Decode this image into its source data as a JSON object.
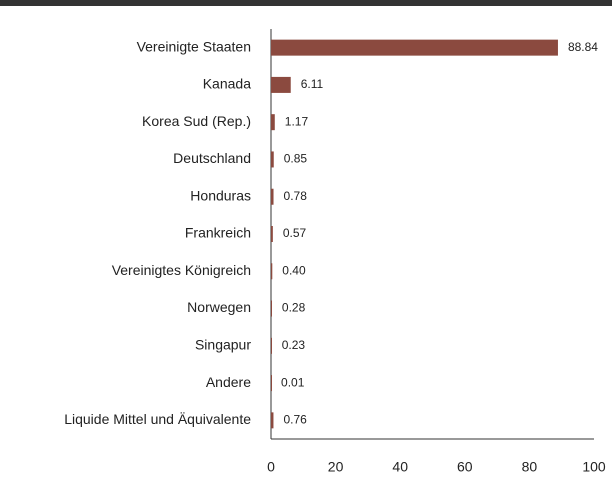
{
  "chart_data": {
    "type": "barh",
    "categories": [
      "Vereinigte Staaten",
      "Kanada",
      "Korea Sud (Rep.)",
      "Deutschland",
      "Honduras",
      "Frankreich",
      "Vereinigtes Königreich",
      "Norwegen",
      "Singapur",
      "Andere",
      "Liquide Mittel und Äquivalente"
    ],
    "values": [
      88.84,
      6.11,
      1.17,
      0.85,
      0.78,
      0.57,
      0.4,
      0.28,
      0.23,
      0.01,
      0.76
    ],
    "value_labels": [
      "88.84",
      "6.11",
      "1.17",
      "0.85",
      "0.78",
      "0.57",
      "0.40",
      "0.28",
      "0.23",
      "0.01",
      "0.76"
    ],
    "color": "#8b4a3f",
    "xlim": [
      0,
      100
    ],
    "xticks": [
      0,
      20,
      40,
      60,
      80,
      100
    ],
    "grid": false
  }
}
